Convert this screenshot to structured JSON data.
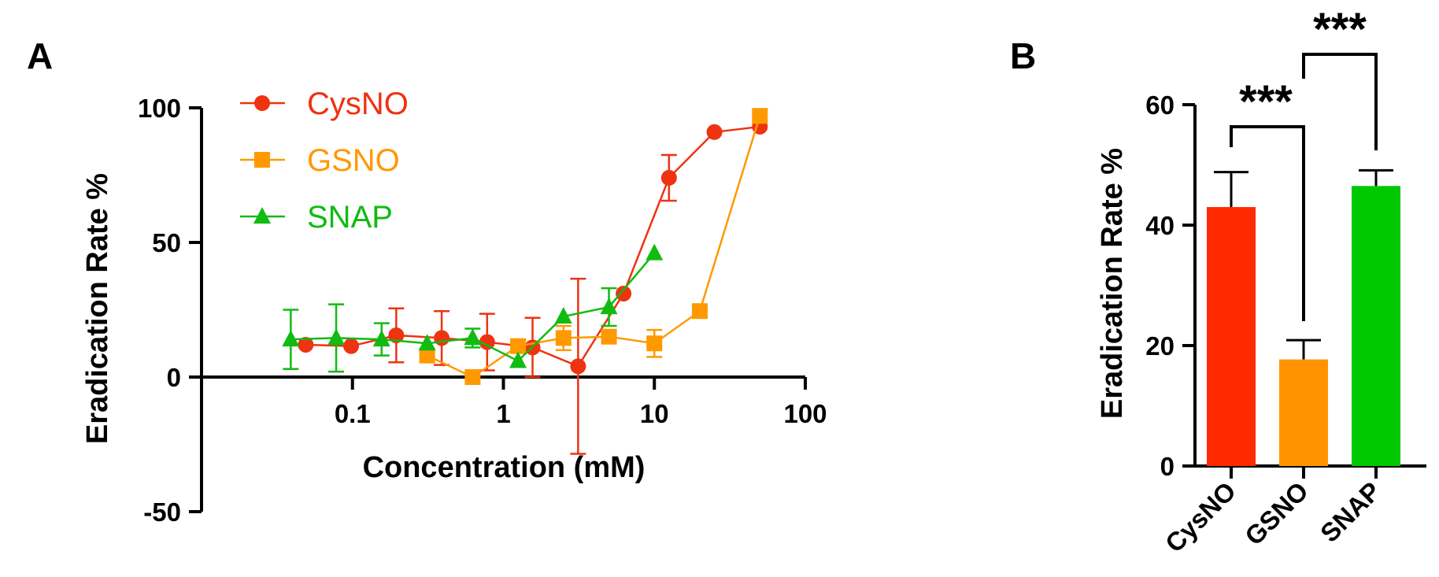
{
  "figure": {
    "panel_a_label": "A",
    "panel_b_label": "B"
  },
  "colors": {
    "CysNO": "#ee3311",
    "GSNO": "#ff9900",
    "SNAP": "#11bb11",
    "CysNO_bar": "#ff2a00",
    "GSNO_bar": "#ff9400",
    "SNAP_bar": "#00c800"
  },
  "chart_data": [
    {
      "type": "scatter",
      "panel": "A",
      "title": "",
      "xlabel": "Concentration (mM)",
      "ylabel": "Eradication Rate %",
      "xscale": "log",
      "xlim": [
        0.01,
        100
      ],
      "ylim": [
        -50,
        100
      ],
      "xticks": [
        0.1,
        1,
        10,
        100
      ],
      "xtick_labels": [
        "0.1",
        "1",
        "10",
        "100"
      ],
      "yticks": [
        -50,
        0,
        50,
        100
      ],
      "ytick_labels": [
        "-50",
        "0",
        "50",
        "100"
      ],
      "legend_position": "top-left",
      "series": [
        {
          "name": "CysNO",
          "color": "#ee3311",
          "marker": "circle",
          "x": [
            0.049,
            0.098,
            0.195,
            0.39,
            0.78,
            1.56,
            3.125,
            6.25,
            12.5,
            25,
            50
          ],
          "y": [
            12,
            11.5,
            15.5,
            14.5,
            13,
            11,
            4,
            31,
            74,
            91,
            93
          ],
          "err": [
            0,
            0,
            10,
            10,
            10.5,
            11,
            32.5,
            0,
            8.5,
            0,
            0
          ]
        },
        {
          "name": "GSNO",
          "color": "#ff9900",
          "marker": "square",
          "x": [
            0.3125,
            0.625,
            1.25,
            2.5,
            5,
            10,
            20,
            50
          ],
          "y": [
            8,
            0,
            11.5,
            14.5,
            15,
            12.5,
            24.5,
            97
          ],
          "err": [
            0,
            0,
            0,
            4.5,
            0,
            5,
            0,
            0
          ]
        },
        {
          "name": "SNAP",
          "color": "#11bb11",
          "marker": "triangle",
          "x": [
            0.039,
            0.078,
            0.156,
            0.3125,
            0.625,
            1.25,
            2.5,
            5,
            10
          ],
          "y": [
            14,
            14.5,
            14,
            12.5,
            14.5,
            6,
            22.5,
            26,
            46
          ],
          "err": [
            11,
            12.5,
            6,
            0,
            3.5,
            0,
            0,
            7,
            0
          ]
        }
      ]
    },
    {
      "type": "bar",
      "panel": "B",
      "title": "",
      "xlabel": "",
      "ylabel": "Eradication Rate %",
      "categories": [
        "CysNO",
        "GSNO",
        "SNAP"
      ],
      "values": [
        43,
        17.7,
        46.5
      ],
      "errors": [
        5.8,
        3.2,
        2.6
      ],
      "ylim": [
        0,
        60
      ],
      "yticks": [
        0,
        20,
        40,
        60
      ],
      "ytick_labels": [
        "0",
        "20",
        "40",
        "60"
      ],
      "significance": [
        {
          "pair": [
            "CysNO",
            "GSNO"
          ],
          "label": "***"
        },
        {
          "pair": [
            "GSNO",
            "SNAP"
          ],
          "label": "***"
        }
      ]
    }
  ]
}
